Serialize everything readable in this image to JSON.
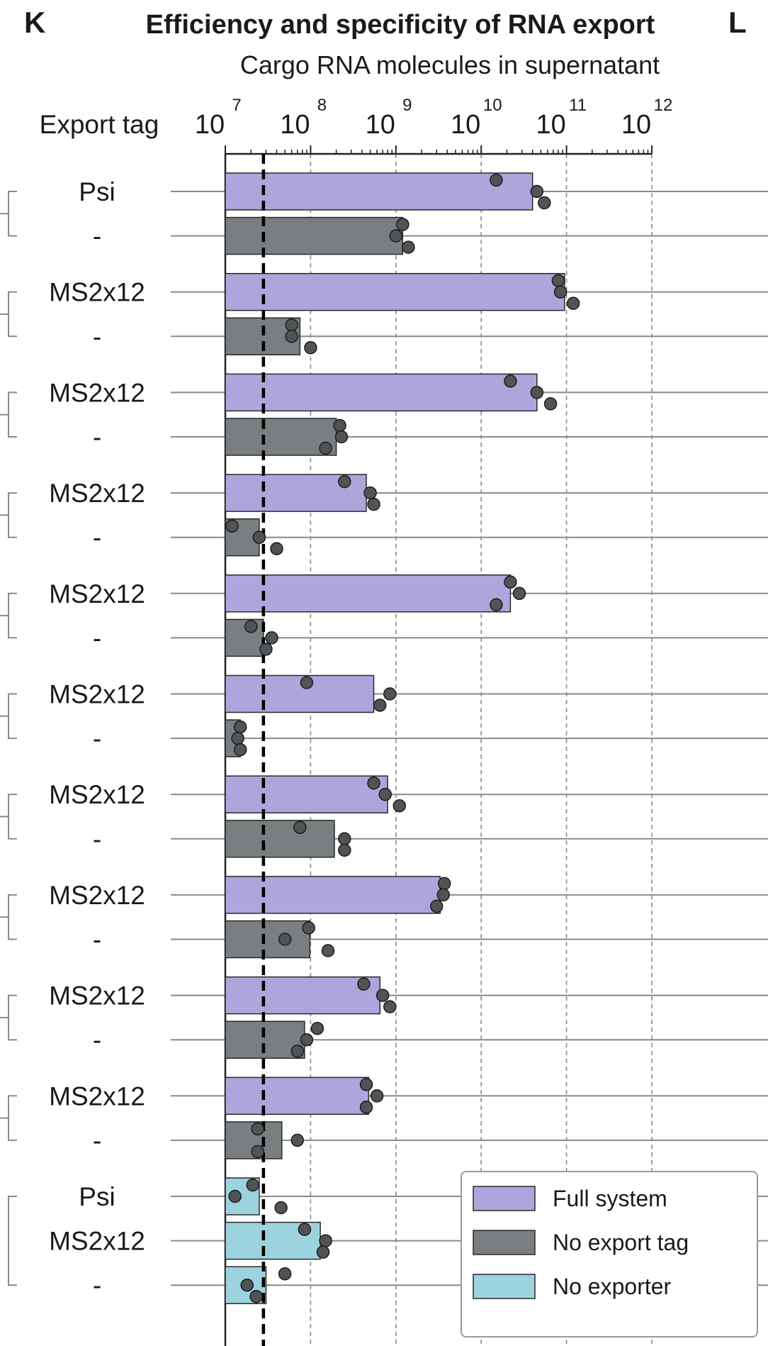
{
  "panel_letters": {
    "left": "K",
    "right": "L"
  },
  "chart_data": {
    "type": "bar",
    "title": "Efficiency and specificity of RNA export",
    "xlabel": "Cargo RNA molecules in supernatant",
    "row_header": "Export tag",
    "x_scale": "log",
    "xlim": [
      10000000,
      1000000000000
    ],
    "x_ticks": [
      {
        "base": "10",
        "exp": "7"
      },
      {
        "base": "10",
        "exp": "8"
      },
      {
        "base": "10",
        "exp": "9"
      },
      {
        "base": "10",
        "exp": "10"
      },
      {
        "base": "10",
        "exp": "11"
      },
      {
        "base": "10",
        "exp": "12"
      }
    ],
    "threshold": 28000000,
    "grid": "vertical dashed at decades",
    "legend_position": "bottom-right",
    "colors": {
      "Full system": "#b0a4dc",
      "No export tag": "#797e80",
      "No exporter": "#9dd3de",
      "threshold": "#000000",
      "point": "#505456"
    },
    "legend": [
      "Full system",
      "No export tag",
      "No exporter"
    ],
    "rows": [
      {
        "label": "Psi",
        "condition": "Full system",
        "value": 40000000000,
        "points": [
          15000000000,
          45000000000,
          55000000000
        ]
      },
      {
        "label": "-",
        "condition": "No export tag",
        "value": 1200000000,
        "points": [
          1200000000,
          1000000000,
          1400000000
        ]
      },
      {
        "label": "MS2x12",
        "condition": "Full system",
        "value": 95000000000,
        "points": [
          80000000000,
          85000000000,
          120000000000
        ]
      },
      {
        "label": "-",
        "condition": "No export tag",
        "value": 75000000,
        "points": [
          60000000,
          60000000,
          100000000
        ]
      },
      {
        "label": "MS2x12",
        "condition": "Full system",
        "value": 45000000000,
        "points": [
          22000000000,
          45000000000,
          65000000000
        ]
      },
      {
        "label": "-",
        "condition": "No export tag",
        "value": 200000000,
        "points": [
          220000000,
          230000000,
          150000000
        ]
      },
      {
        "label": "MS2x12",
        "condition": "Full system",
        "value": 450000000,
        "points": [
          250000000,
          500000000,
          550000000
        ]
      },
      {
        "label": "-",
        "condition": "No export tag",
        "value": 25000000,
        "points": [
          12000000,
          25000000,
          40000000
        ]
      },
      {
        "label": "MS2x12",
        "condition": "Full system",
        "value": 22000000000,
        "points": [
          22000000000,
          28000000000,
          15000000000
        ]
      },
      {
        "label": "-",
        "condition": "No export tag",
        "value": 28000000,
        "points": [
          20000000,
          35000000,
          30000000
        ]
      },
      {
        "label": "MS2x12",
        "condition": "Full system",
        "value": 550000000,
        "points": [
          90000000,
          850000000,
          650000000
        ]
      },
      {
        "label": "-",
        "condition": "No export tag",
        "value": 15000000,
        "points": [
          15000000,
          14000000,
          15000000
        ]
      },
      {
        "label": "MS2x12",
        "condition": "Full system",
        "value": 800000000,
        "points": [
          550000000,
          750000000,
          1100000000
        ]
      },
      {
        "label": "-",
        "condition": "No export tag",
        "value": 190000000,
        "points": [
          75000000,
          250000000,
          250000000
        ]
      },
      {
        "label": "MS2x12",
        "condition": "Full system",
        "value": 3300000000,
        "points": [
          3700000000,
          3600000000,
          3000000000
        ]
      },
      {
        "label": "-",
        "condition": "No export tag",
        "value": 98000000,
        "points": [
          95000000,
          50000000,
          160000000
        ]
      },
      {
        "label": "MS2x12",
        "condition": "Full system",
        "value": 650000000,
        "points": [
          420000000,
          700000000,
          850000000
        ]
      },
      {
        "label": "-",
        "condition": "No export tag",
        "value": 85000000,
        "points": [
          120000000,
          90000000,
          70000000
        ]
      },
      {
        "label": "MS2x12",
        "condition": "Full system",
        "value": 480000000,
        "points": [
          450000000,
          600000000,
          450000000
        ]
      },
      {
        "label": "-",
        "condition": "No export tag",
        "value": 46000000,
        "points": [
          24000000,
          70000000,
          24000000
        ]
      },
      {
        "label": "Psi",
        "condition": "No exporter",
        "value": 25000000,
        "points": [
          21000000,
          13000000,
          45000000
        ]
      },
      {
        "label": "MS2x12",
        "condition": "No exporter",
        "value": 130000000,
        "points": [
          85000000,
          150000000,
          140000000
        ]
      },
      {
        "label": "-",
        "condition": "No exporter",
        "value": 30000000,
        "points": [
          50000000,
          18000000,
          23000000
        ]
      }
    ]
  }
}
